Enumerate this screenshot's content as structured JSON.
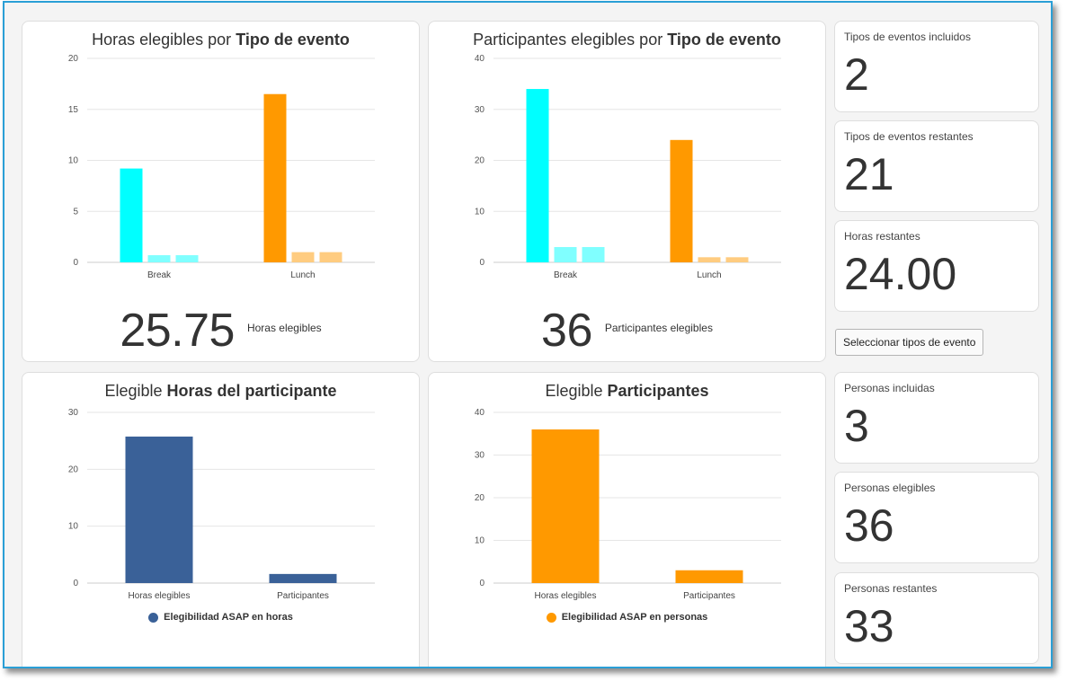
{
  "colors": {
    "cyan": "#00ffff",
    "cyan_light": "#80ffff",
    "orange": "#ff9900",
    "orange_light": "#ffcc80",
    "navy": "#3a6198",
    "frame": "#2a9fd6"
  },
  "charts": {
    "hours_by_type": {
      "title_prefix": "Horas elegibles por",
      "title_bold": "Tipo de evento",
      "big_value": "25.75",
      "big_label": "Horas elegibles"
    },
    "participants_by_type": {
      "title_prefix": "Participantes elegibles por",
      "title_bold": "Tipo de evento",
      "big_value": "36",
      "big_label": "Participantes elegibles"
    },
    "participant_hours": {
      "title_prefix": "Elegible",
      "title_bold": "Horas del participante",
      "legend": "Elegibilidad ASAP en horas"
    },
    "participants": {
      "title_prefix": "Elegible",
      "title_bold": "Participantes",
      "legend": "Elegibilidad ASAP en personas"
    }
  },
  "chart_data": [
    {
      "type": "bar",
      "categories": [
        "Break",
        "Lunch"
      ],
      "series": [
        {
          "values": [
            9.2,
            16.5
          ]
        },
        {
          "values": [
            0.7,
            1.0
          ]
        },
        {
          "values": [
            0.7,
            1.0
          ]
        }
      ],
      "title": "Horas elegibles por Tipo de evento",
      "ylim": [
        0,
        20
      ],
      "yticks": [
        0,
        5,
        10,
        15,
        20
      ],
      "grid": true
    },
    {
      "type": "bar",
      "categories": [
        "Break",
        "Lunch"
      ],
      "series": [
        {
          "values": [
            34,
            24
          ]
        },
        {
          "values": [
            3,
            1
          ]
        },
        {
          "values": [
            3,
            1
          ]
        }
      ],
      "title": "Participantes elegibles por Tipo de evento",
      "ylim": [
        0,
        40
      ],
      "yticks": [
        0,
        10,
        20,
        30,
        40
      ],
      "grid": true
    },
    {
      "type": "bar",
      "categories": [
        "Horas elegibles",
        "Participantes"
      ],
      "series": [
        {
          "name": "Elegibilidad ASAP en horas",
          "values": [
            25.75,
            1.6
          ]
        }
      ],
      "title": "Elegible Horas del participante",
      "ylim": [
        0,
        30
      ],
      "yticks": [
        0,
        10,
        20,
        30
      ],
      "grid": true,
      "legend": "bottom"
    },
    {
      "type": "bar",
      "categories": [
        "Horas elegibles",
        "Participantes"
      ],
      "series": [
        {
          "name": "Elegibilidad ASAP en personas",
          "values": [
            36,
            3
          ]
        }
      ],
      "title": "Elegible Participantes",
      "ylim": [
        0,
        40
      ],
      "yticks": [
        0,
        10,
        20,
        30,
        40
      ],
      "grid": true,
      "legend": "bottom"
    }
  ],
  "stats": {
    "event_types_included": {
      "label": "Tipos de eventos incluidos",
      "value": "2"
    },
    "event_types_remaining": {
      "label": "Tipos de eventos restantes",
      "value": "21"
    },
    "hours_remaining": {
      "label": "Horas restantes",
      "value": "24.00"
    },
    "people_included": {
      "label": "Personas incluidas",
      "value": "3"
    },
    "people_eligible": {
      "label": "Personas elegibles",
      "value": "36"
    },
    "people_remaining": {
      "label": "Personas restantes",
      "value": "33"
    }
  },
  "select_button": "Seleccionar tipos de evento"
}
